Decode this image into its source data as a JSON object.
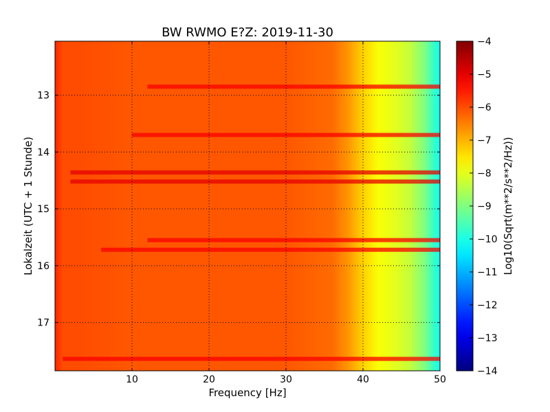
{
  "chart_data": {
    "type": "heatmap",
    "title": "BW RWMO E?Z: 2019-11-30",
    "xlabel": "Frequency [Hz]",
    "ylabel": "Lokalzeit (UTC + 1 Stunde)",
    "xlim": [
      0,
      50
    ],
    "ylim": [
      17.85,
      12.05
    ],
    "y_inverted": true,
    "xticks": [
      10,
      20,
      30,
      40,
      50
    ],
    "yticks": [
      13,
      14,
      15,
      16,
      17
    ],
    "grid": true,
    "colorbar": {
      "label": "Log10(Sqrt(m**2/s**2/Hz))",
      "range": [
        -14,
        -4
      ],
      "ticks": [
        -4,
        -5,
        -6,
        -7,
        -8,
        -9,
        -10,
        -11,
        -12,
        -13,
        -14
      ],
      "colormap": "jet"
    },
    "background_profile": {
      "frequency_hz": [
        0,
        1,
        3,
        10,
        20,
        30,
        36,
        38,
        40,
        42,
        44,
        46,
        48,
        49,
        50
      ],
      "value": [
        -5.6,
        -6.0,
        -6.0,
        -6.1,
        -6.1,
        -6.1,
        -6.3,
        -6.7,
        -7.3,
        -7.8,
        -8.0,
        -8.3,
        -9.0,
        -9.6,
        -10.1
      ]
    },
    "bands": [
      {
        "time": 12.85,
        "f_start": 12,
        "f_end": 50,
        "value": -5.2
      },
      {
        "time": 13.7,
        "f_start": 10,
        "f_end": 50,
        "value": -5.2
      },
      {
        "time": 14.36,
        "f_start": 2,
        "f_end": 50,
        "value": -5.0
      },
      {
        "time": 14.52,
        "f_start": 2,
        "f_end": 50,
        "value": -5.0
      },
      {
        "time": 15.55,
        "f_start": 12,
        "f_end": 50,
        "value": -5.2
      },
      {
        "time": 15.72,
        "f_start": 6,
        "f_end": 50,
        "value": -5.2
      },
      {
        "time": 17.64,
        "f_start": 1,
        "f_end": 50,
        "value": -5.2
      }
    ]
  }
}
